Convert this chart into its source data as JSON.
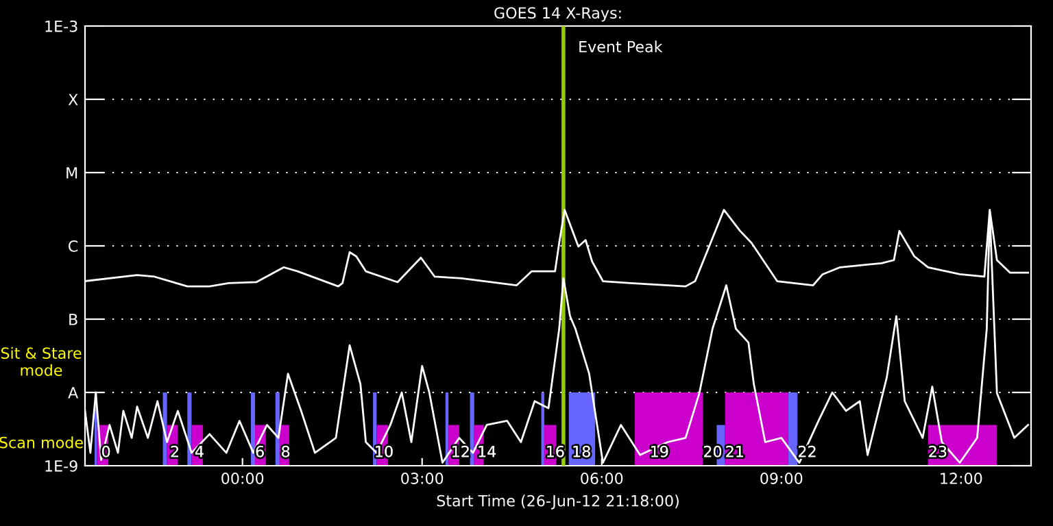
{
  "chart_data": {
    "type": "line",
    "title": "GOES 14 X-Rays:",
    "xlabel": "Start Time (26-Jun-12 21:18:00)",
    "xlim": [
      -2.63,
      13.17
    ],
    "xticks": [
      {
        "value": 0,
        "label": "00:00"
      },
      {
        "value": 3,
        "label": "03:00"
      },
      {
        "value": 6,
        "label": "06:00"
      },
      {
        "value": 9,
        "label": "09:00"
      },
      {
        "value": 12,
        "label": "12:00"
      }
    ],
    "log": true,
    "ylim": [
      1e-09,
      0.001
    ],
    "yticks": [
      {
        "value": 1e-09,
        "label": "1E-9"
      },
      {
        "value": 1e-08,
        "label": "A"
      },
      {
        "value": 1e-07,
        "label": "B"
      },
      {
        "value": 1e-06,
        "label": "C"
      },
      {
        "value": 1e-05,
        "label": "M"
      },
      {
        "value": 0.0001,
        "label": "X"
      },
      {
        "value": 0.001,
        "label": "1E-3"
      }
    ],
    "grid": "y",
    "series": [
      {
        "color": "#ffffff",
        "x": [
          -2.63,
          -1.76,
          -1.47,
          -0.92,
          -0.55,
          -0.23,
          0.23,
          0.69,
          0.92,
          1.6,
          1.67,
          1.79,
          1.9,
          2.06,
          2.59,
          2.98,
          3.21,
          3.66,
          4.58,
          4.83,
          5.22,
          5.29,
          5.38,
          5.61,
          5.73,
          5.84,
          6.02,
          6.48,
          7.4,
          7.56,
          8.04,
          8.31,
          8.5,
          8.93,
          9.53,
          9.69,
          9.98,
          10.67,
          10.88,
          10.97,
          11.22,
          11.45,
          11.98,
          12.39,
          12.48,
          12.6,
          12.82,
          13.12
        ],
        "values": [
          3.3e-07,
          4e-07,
          3.8e-07,
          2.8e-07,
          2.8e-07,
          3.1e-07,
          3.2e-07,
          5.1e-07,
          4.5e-07,
          2.8e-07,
          3.1e-07,
          8.2e-07,
          7.2e-07,
          4.5e-07,
          3.2e-07,
          6.9e-07,
          3.8e-07,
          3.6e-07,
          2.9e-07,
          4.5e-07,
          4.5e-07,
          1.1e-06,
          3.1e-06,
          9.8e-07,
          1.2e-06,
          6.1e-07,
          3.3e-07,
          3.1e-07,
          2.8e-07,
          3.3e-07,
          3.1e-06,
          1.6e-06,
          1.1e-06,
          3.3e-07,
          2.9e-07,
          4.1e-07,
          5.1e-07,
          5.8e-07,
          6.4e-07,
          1.6e-06,
          7.2e-07,
          5.1e-07,
          4.1e-07,
          3.8e-07,
          3.1e-06,
          6.4e-07,
          4.3e-07,
          4.3e-07
        ]
      },
      {
        "color": "#ffffff",
        "x": [
          -2.63,
          -2.54,
          -2.45,
          -2.36,
          -2.22,
          -2.08,
          -1.99,
          -1.85,
          -1.76,
          -1.58,
          -1.42,
          -1.26,
          -1.08,
          -0.85,
          -0.55,
          -0.27,
          -0.05,
          0.18,
          0.41,
          0.6,
          0.76,
          0.98,
          1.21,
          1.56,
          1.79,
          1.97,
          2.06,
          2.24,
          2.47,
          2.66,
          2.82,
          3.0,
          3.12,
          3.34,
          3.62,
          3.85,
          4.08,
          4.42,
          4.65,
          4.88,
          5.11,
          5.29,
          5.36,
          5.47,
          5.56,
          5.79,
          6.02,
          6.32,
          6.64,
          7.1,
          7.4,
          7.63,
          7.85,
          8.08,
          8.24,
          8.45,
          8.54,
          8.73,
          9.0,
          9.3,
          9.62,
          9.85,
          10.08,
          10.31,
          10.44,
          10.76,
          10.92,
          11.06,
          11.36,
          11.52,
          11.68,
          11.98,
          12.27,
          12.43,
          12.48,
          12.6,
          12.89,
          13.12
        ],
        "values": [
          5.6e-09,
          1.5e-09,
          1e-08,
          1.2e-09,
          3.6e-09,
          1.5e-09,
          5.6e-09,
          2.4e-09,
          6.4e-09,
          2.4e-09,
          7.6e-09,
          2.1e-09,
          5.6e-09,
          1.5e-09,
          2.7e-09,
          1.5e-09,
          4.1e-09,
          1.5e-09,
          3.6e-09,
          2.4e-09,
          1.8e-08,
          5.6e-09,
          1.5e-09,
          2.4e-09,
          4.4e-08,
          1.3e-08,
          2.1e-09,
          1.5e-09,
          3.6e-09,
          1e-08,
          2.1e-09,
          2.3e-08,
          1e-08,
          1.1e-09,
          2.4e-09,
          1.5e-09,
          3.6e-09,
          4.1e-09,
          2.1e-09,
          7.6e-09,
          6.1e-09,
          7.4e-08,
          3.6e-07,
          1.1e-07,
          7.4e-08,
          1.8e-08,
          1.1e-09,
          3.6e-09,
          1.4e-09,
          2.1e-09,
          2.4e-09,
          9.8e-09,
          7.4e-08,
          2.9e-07,
          7.4e-08,
          4.8e-08,
          1.3e-08,
          2.1e-09,
          2.4e-09,
          1.1e-09,
          4.1e-09,
          1e-08,
          5.6e-09,
          7.6e-09,
          1.4e-09,
          1.6e-08,
          1.1e-07,
          7.6e-09,
          2.4e-09,
          1.2e-08,
          2.1e-09,
          1.1e-09,
          2.4e-09,
          7.4e-08,
          2.9e-06,
          9.8e-09,
          2.4e-09,
          3.6e-09
        ]
      },
      {
        "type": "area",
        "color": "#6666ff",
        "x": [
          -2.47,
          -2.47,
          -2.43,
          -2.43,
          -1.33,
          -1.33,
          -1.26,
          -1.26,
          -0.92,
          -0.92,
          -0.85,
          -0.85,
          0.14,
          0.14,
          0.21,
          0.21,
          0.55,
          0.55,
          0.62,
          0.62,
          2.18,
          2.18,
          2.24,
          2.24,
          3.39,
          3.39,
          3.44,
          3.44,
          3.8,
          3.8,
          3.87,
          3.87,
          4.99,
          4.99,
          5.04,
          5.04,
          5.45,
          5.45,
          5.89,
          5.89,
          7.92,
          7.92,
          8.06,
          8.06,
          9.11,
          9.11,
          9.27,
          9.27
        ],
        "values": [
          1e-09,
          1e-08,
          1e-08,
          1e-09,
          1e-09,
          1e-08,
          1e-08,
          1e-09,
          1e-09,
          1e-08,
          1e-08,
          1e-09,
          1e-09,
          1e-08,
          1e-08,
          1e-09,
          1e-09,
          1e-08,
          1e-08,
          1e-09,
          1e-09,
          1e-08,
          1e-08,
          1e-09,
          1e-09,
          1e-08,
          1e-08,
          1e-09,
          1e-09,
          1e-08,
          1e-08,
          1e-09,
          1e-09,
          1e-08,
          1e-08,
          1e-09,
          1e-09,
          1e-08,
          1e-08,
          1e-09,
          1e-09,
          3.6e-09,
          3.6e-09,
          1e-09,
          1e-09,
          1e-08,
          1e-08,
          1e-09
        ]
      },
      {
        "type": "area",
        "color": "#cc00cc",
        "x": [
          -2.43,
          -2.43,
          -2.24,
          -2.24,
          -1.26,
          -1.26,
          -1.08,
          -1.08,
          -0.85,
          -0.85,
          -0.66,
          -0.66,
          0.21,
          0.21,
          0.39,
          0.39,
          0.62,
          0.62,
          0.78,
          0.78,
          2.24,
          2.24,
          2.43,
          2.43,
          3.44,
          3.44,
          3.62,
          3.62,
          3.87,
          3.87,
          4.03,
          4.03,
          5.04,
          5.04,
          5.24,
          5.24,
          6.55,
          6.55,
          7.69,
          7.69,
          8.06,
          8.06,
          9.11,
          9.11,
          11.45,
          11.45,
          12.6,
          12.6
        ],
        "values": [
          1e-09,
          3.6e-09,
          3.6e-09,
          1e-09,
          1e-09,
          3.6e-09,
          3.6e-09,
          1e-09,
          1e-09,
          3.6e-09,
          3.6e-09,
          1e-09,
          1e-09,
          3.6e-09,
          3.6e-09,
          1e-09,
          1e-09,
          3.6e-09,
          3.6e-09,
          1e-09,
          1e-09,
          3.6e-09,
          3.6e-09,
          1e-09,
          1e-09,
          3.6e-09,
          3.6e-09,
          1e-09,
          1e-09,
          3.6e-09,
          3.6e-09,
          1e-09,
          1e-09,
          3.6e-09,
          3.6e-09,
          1e-09,
          1e-09,
          1e-08,
          1e-08,
          1e-09,
          1e-09,
          1e-08,
          1e-08,
          1e-09,
          1e-09,
          3.6e-09,
          3.6e-09,
          1e-09
        ]
      }
    ],
    "ref_lines": [
      {
        "axis": "x",
        "value": 5.36,
        "label": "Event Peak",
        "color": "#99cc00"
      }
    ],
    "annotations": [
      "Sit & Stare\nmode",
      "Scan mode",
      {
        "text": "0",
        "x": -2.36,
        "y": 1.5e-09
      },
      {
        "text": "2",
        "x": -1.21,
        "y": 1.5e-09
      },
      {
        "text": "4",
        "x": -0.8,
        "y": 1.5e-09
      },
      {
        "text": "6",
        "x": 0.21,
        "y": 1.5e-09
      },
      {
        "text": "8",
        "x": 0.64,
        "y": 1.5e-09
      },
      {
        "text": "10",
        "x": 2.2,
        "y": 1.5e-09
      },
      {
        "text": "12",
        "x": 3.48,
        "y": 1.5e-09
      },
      {
        "text": "14",
        "x": 3.92,
        "y": 1.5e-09
      },
      {
        "text": "16",
        "x": 5.06,
        "y": 1.5e-09
      },
      {
        "text": "18",
        "x": 5.5,
        "y": 1.5e-09
      },
      {
        "text": "19",
        "x": 6.8,
        "y": 1.5e-09
      },
      {
        "text": "20",
        "x": 7.69,
        "y": 1.5e-09
      },
      {
        "text": "21",
        "x": 8.06,
        "y": 1.5e-09
      },
      {
        "text": "22",
        "x": 9.27,
        "y": 1.5e-09
      },
      {
        "text": "23",
        "x": 11.45,
        "y": 1.5e-09
      }
    ]
  }
}
